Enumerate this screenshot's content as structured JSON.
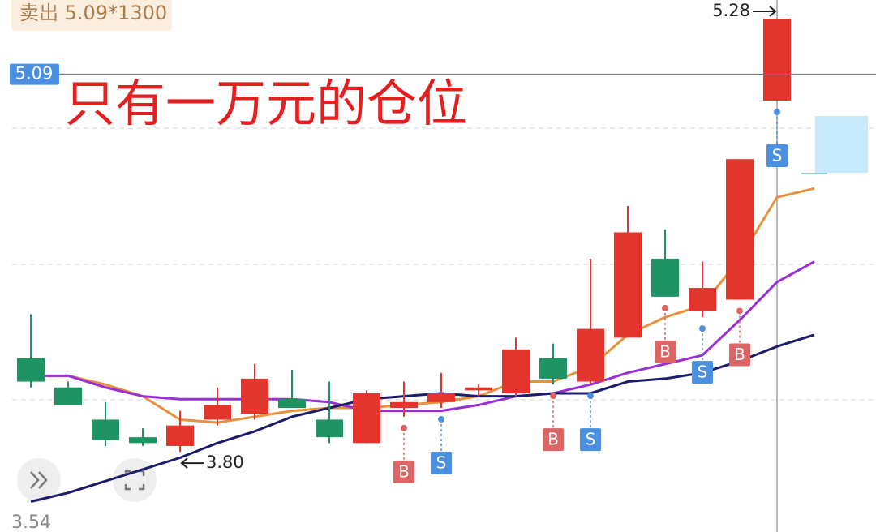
{
  "chart_data": {
    "type": "candlestick",
    "annotation": "卖出 5.09*1300",
    "title": "只有一万元的仓位",
    "ylim": [
      3.54,
      5.28
    ],
    "yticks": [
      3.54
    ],
    "price_line": 5.09,
    "max_label": 5.28,
    "min_label": {
      "value": 3.8,
      "label": "3.80"
    },
    "up_color": "#e3352e",
    "down_color": "#1e9363",
    "open": [
      4.12,
      4.02,
      3.91,
      3.85,
      3.82,
      3.91,
      3.93,
      3.98,
      3.91,
      3.83,
      3.95,
      3.97,
      4.01,
      4.0,
      4.12,
      4.04,
      4.19,
      4.46,
      4.28,
      4.32,
      5.0,
      null
    ],
    "high": [
      4.27,
      4.04,
      3.97,
      3.88,
      3.94,
      4.02,
      4.1,
      4.08,
      4.04,
      4.01,
      4.04,
      4.07,
      4.03,
      4.19,
      4.17,
      4.46,
      4.64,
      4.56,
      4.45,
      4.8,
      5.28,
      null
    ],
    "low": [
      4.02,
      3.96,
      3.82,
      3.82,
      3.8,
      3.89,
      3.91,
      3.95,
      3.83,
      3.83,
      3.92,
      3.95,
      3.99,
      3.99,
      4.03,
      4.03,
      4.19,
      4.33,
      4.26,
      4.32,
      5.0,
      null
    ],
    "close": [
      4.04,
      3.96,
      3.84,
      3.83,
      3.89,
      3.96,
      4.05,
      3.95,
      3.85,
      4.0,
      3.97,
      4.0,
      4.02,
      4.15,
      4.05,
      4.22,
      4.55,
      4.33,
      4.36,
      4.8,
      5.28,
      null
    ],
    "signals": [
      null,
      null,
      null,
      null,
      null,
      null,
      null,
      null,
      null,
      null,
      "B",
      "S",
      null,
      null,
      "B",
      "S",
      null,
      "B",
      "S",
      "B",
      "S",
      null
    ],
    "series": [
      {
        "color": "#e8913c",
        "values": [
          4.06,
          4.06,
          4.03,
          3.99,
          3.91,
          3.9,
          3.92,
          3.94,
          3.95,
          3.95,
          3.96,
          3.97,
          3.99,
          4.04,
          4.04,
          4.09,
          4.2,
          4.26,
          4.3,
          4.46,
          4.67,
          4.7
        ]
      },
      {
        "color": "#9b2fd6",
        "values": [
          4.06,
          4.06,
          4.02,
          3.99,
          3.98,
          3.98,
          3.98,
          3.98,
          3.97,
          3.94,
          3.94,
          3.94,
          3.96,
          3.99,
          4.0,
          4.03,
          4.07,
          4.1,
          4.13,
          4.25,
          4.38,
          4.45
        ]
      },
      {
        "color": "#1b1b6b",
        "values": [
          3.63,
          3.66,
          3.7,
          3.74,
          3.78,
          3.83,
          3.87,
          3.92,
          3.95,
          3.98,
          3.99,
          4.0,
          3.99,
          3.99,
          4.0,
          4.0,
          4.04,
          4.05,
          4.07,
          4.11,
          4.16,
          4.2
        ]
      }
    ]
  }
}
